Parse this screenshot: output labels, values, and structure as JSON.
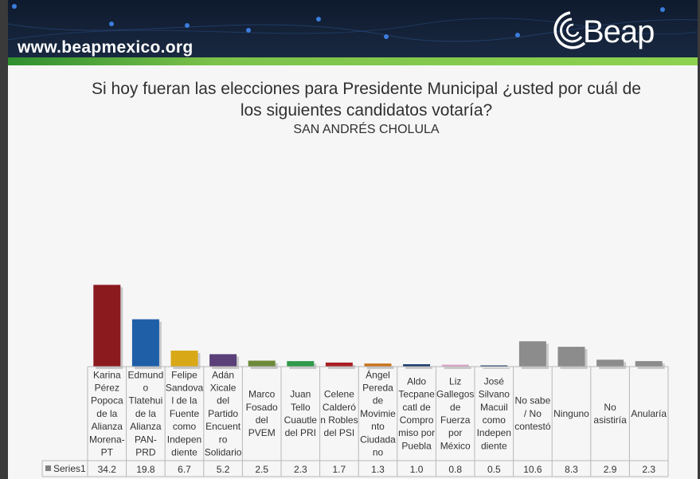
{
  "header": {
    "url": "www.beapmexico.org",
    "logo_text": "Beap",
    "logo_icon": "beap-wave-icon"
  },
  "chart_data": {
    "type": "bar",
    "title": "Si hoy fueran las elecciones para Presidente Municipal ¿usted por cuál de los siguientes candidatos votaría?",
    "subtitle": "SAN ANDRÉS CHOLULA",
    "categories": [
      [
        "Karina",
        "Pérez",
        "Popoca",
        "de la",
        "Alianza",
        "Morena-",
        "PT"
      ],
      [
        "Edmund",
        "o",
        "Tlatehui",
        "de la",
        "Alianza",
        "PAN-",
        "PRD"
      ],
      [
        "Felipe",
        "Sandova",
        "l de la",
        "Fuente",
        "como",
        "Indepen",
        "diente"
      ],
      [
        "Adán",
        "Xicale",
        "del",
        "Partido",
        "Encuent",
        "ro",
        "Solidario"
      ],
      [
        "Marco",
        "Fosado",
        "del",
        "PVEM"
      ],
      [
        "Juan",
        "Tello",
        "Cuautle",
        "del PRI"
      ],
      [
        "Celene",
        "Calderó",
        "n Robles",
        "del PSI"
      ],
      [
        "Ángel",
        "Pereda",
        "de",
        "Movimie",
        "nto",
        "Ciudada",
        "no"
      ],
      [
        "Aldo",
        "Tecpane",
        "catl de",
        "Compro",
        "miso por",
        "Puebla"
      ],
      [
        "Liz",
        "Gallegos",
        "de",
        "Fuerza",
        "por",
        "México"
      ],
      [
        "José",
        "Silvano",
        "Macuil",
        "como",
        "Indepen",
        "diente"
      ],
      [
        "No sabe",
        "/ No",
        "contestó"
      ],
      [
        "Ninguno"
      ],
      [
        "No",
        "asistiría"
      ],
      [
        "Anularía"
      ]
    ],
    "series": [
      {
        "name": "Series1",
        "values": [
          34.2,
          19.8,
          6.7,
          5.2,
          2.5,
          2.3,
          1.7,
          1.3,
          1.0,
          0.8,
          0.5,
          10.6,
          8.3,
          2.9,
          2.3
        ],
        "labels": [
          "34.2",
          "19.8",
          "6.7",
          "5.2",
          "2.5",
          "2.3",
          "1.7",
          "1.3",
          "1.0",
          "0.8",
          "0.5",
          "10.6",
          "8.3",
          "2.9",
          "2.3"
        ]
      }
    ],
    "colors": [
      "#8b1a1f",
      "#1f5fa8",
      "#d8a817",
      "#5a3f78",
      "#6d8a3a",
      "#2e9a4a",
      "#a81e22",
      "#c9751f",
      "#1d3d6e",
      "#d9a0c4",
      "#1f3c6b",
      "#8c8c8c",
      "#8c8c8c",
      "#8c8c8c",
      "#8c8c8c"
    ],
    "ylim": [
      0,
      40
    ],
    "xlabel": "",
    "ylabel": "",
    "grid": false,
    "legend": "table"
  }
}
